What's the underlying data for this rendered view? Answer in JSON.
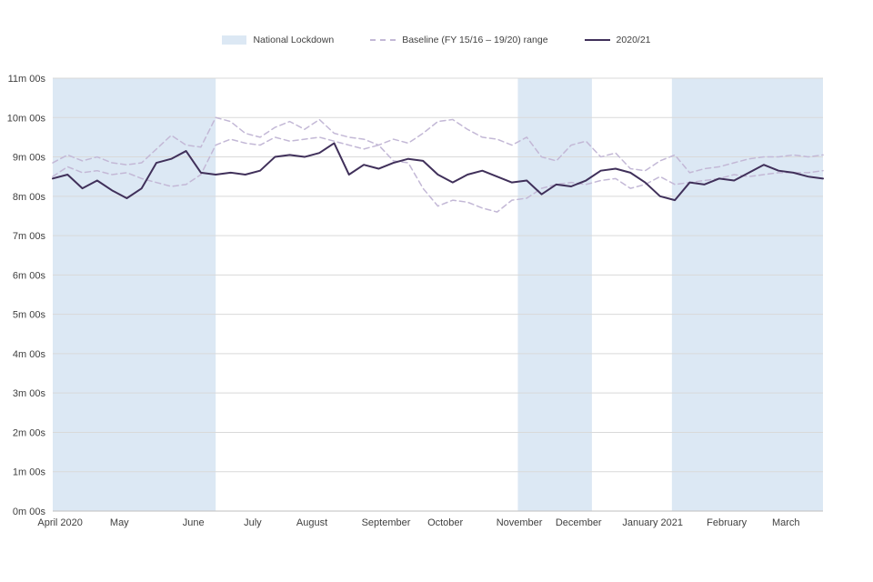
{
  "chart_data": {
    "type": "line",
    "title": "",
    "xlabel": "",
    "ylabel": "",
    "ylim": [
      0,
      11
    ],
    "weeks_total": 52,
    "grid": "horizontal",
    "legend_position": "top-center",
    "y_ticks": [
      {
        "v": 0,
        "label": "0m 00s"
      },
      {
        "v": 1,
        "label": "1m 00s"
      },
      {
        "v": 2,
        "label": "2m 00s"
      },
      {
        "v": 3,
        "label": "3m 00s"
      },
      {
        "v": 4,
        "label": "4m 00s"
      },
      {
        "v": 5,
        "label": "5m 00s"
      },
      {
        "v": 6,
        "label": "6m 00s"
      },
      {
        "v": 7,
        "label": "7m 00s"
      },
      {
        "v": 8,
        "label": "8m 00s"
      },
      {
        "v": 9,
        "label": "9m 00s"
      },
      {
        "v": 10,
        "label": "10m 00s"
      },
      {
        "v": 11,
        "label": "11m 00s"
      }
    ],
    "month_ticks": [
      {
        "week": 0.5,
        "label": "April 2020"
      },
      {
        "week": 4.5,
        "label": "May"
      },
      {
        "week": 9.5,
        "label": "June"
      },
      {
        "week": 13.5,
        "label": "July"
      },
      {
        "week": 17.5,
        "label": "August"
      },
      {
        "week": 22.5,
        "label": "September"
      },
      {
        "week": 26.5,
        "label": "October"
      },
      {
        "week": 31.5,
        "label": "November"
      },
      {
        "week": 35.5,
        "label": "December"
      },
      {
        "week": 40.5,
        "label": "January 2021"
      },
      {
        "week": 45.5,
        "label": "February"
      },
      {
        "week": 49.5,
        "label": "March"
      }
    ],
    "lockdown_bands": [
      [
        0,
        11
      ],
      [
        31.4,
        36.4
      ],
      [
        41.8,
        52
      ]
    ],
    "legend": [
      {
        "label": "National Lockdown",
        "type": "band"
      },
      {
        "label": "Baseline (FY 15/16 – 19/20) range",
        "type": "dashed"
      },
      {
        "label": "2020/21",
        "type": "solid"
      }
    ],
    "colors": {
      "lockdown_band": "#dce8f4",
      "baseline": "#c3b8d6",
      "current": "#40305a",
      "gridline": "#d9d9d9",
      "axis": "#bfbfbf",
      "text": "#404040"
    },
    "value_unit": "minutes",
    "series": [
      {
        "name": "Baseline upper (FY 15/16 – 19/20)",
        "style": "dashed",
        "values": [
          8.85,
          9.05,
          8.9,
          9.0,
          8.85,
          8.8,
          8.85,
          9.2,
          9.55,
          9.3,
          9.25,
          10.0,
          9.9,
          9.6,
          9.5,
          9.75,
          9.9,
          9.7,
          9.95,
          9.6,
          9.5,
          9.45,
          9.3,
          9.45,
          9.35,
          9.6,
          9.9,
          9.95,
          9.7,
          9.5,
          9.45,
          9.3,
          9.5,
          9.0,
          8.9,
          9.3,
          9.4,
          9.0,
          9.1,
          8.7,
          8.65,
          8.9,
          9.05,
          8.6,
          8.7,
          8.75,
          8.85,
          8.95,
          9.0,
          9.0,
          9.05,
          9.0,
          9.05
        ]
      },
      {
        "name": "Baseline lower (FY 15/16 – 19/20)",
        "style": "dashed",
        "values": [
          8.5,
          8.75,
          8.6,
          8.65,
          8.55,
          8.6,
          8.45,
          8.35,
          8.25,
          8.3,
          8.55,
          9.3,
          9.45,
          9.35,
          9.3,
          9.5,
          9.4,
          9.45,
          9.5,
          9.4,
          9.3,
          9.2,
          9.3,
          8.9,
          8.85,
          8.2,
          7.75,
          7.9,
          7.85,
          7.7,
          7.6,
          7.9,
          7.95,
          8.2,
          8.3,
          8.35,
          8.3,
          8.4,
          8.45,
          8.2,
          8.3,
          8.5,
          8.3,
          8.35,
          8.4,
          8.45,
          8.55,
          8.5,
          8.55,
          8.6,
          8.6,
          8.6,
          8.65
        ]
      },
      {
        "name": "2020/21",
        "style": "solid",
        "values": [
          8.45,
          8.55,
          8.2,
          8.4,
          8.15,
          7.95,
          8.2,
          8.85,
          8.95,
          9.15,
          8.6,
          8.55,
          8.6,
          8.55,
          8.65,
          9.0,
          9.05,
          9.0,
          9.1,
          9.35,
          8.55,
          8.8,
          8.7,
          8.85,
          8.95,
          8.9,
          8.55,
          8.35,
          8.55,
          8.65,
          8.5,
          8.35,
          8.4,
          8.05,
          8.3,
          8.25,
          8.4,
          8.65,
          8.7,
          8.6,
          8.35,
          8.0,
          7.9,
          8.35,
          8.3,
          8.45,
          8.4,
          8.6,
          8.8,
          8.65,
          8.6,
          8.5,
          8.45
        ]
      }
    ]
  }
}
